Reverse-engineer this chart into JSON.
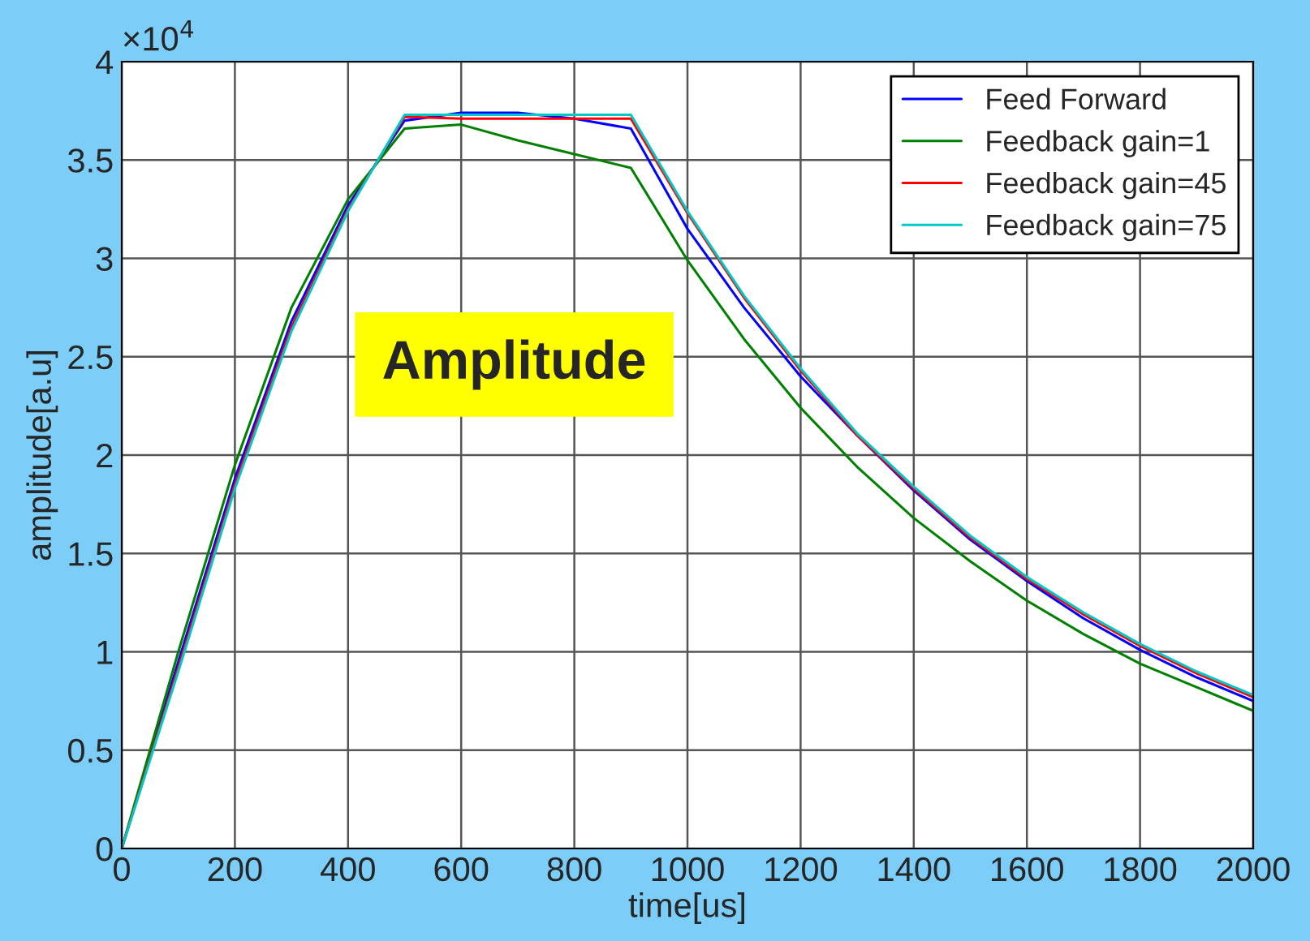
{
  "chart_data": {
    "type": "line",
    "xlabel": "time[us]",
    "ylabel": "amplitude[a.u]",
    "x": [
      0,
      100,
      200,
      300,
      400,
      500,
      600,
      700,
      800,
      900,
      1000,
      1100,
      1200,
      1300,
      1400,
      1500,
      1600,
      1700,
      1800,
      1900,
      2000
    ],
    "series": [
      {
        "name": "Feed Forward",
        "color": "#0000ff",
        "values": [
          0,
          0.95,
          1.88,
          2.68,
          3.27,
          3.7,
          3.74,
          3.74,
          3.71,
          3.66,
          3.15,
          2.75,
          2.4,
          2.1,
          1.82,
          1.57,
          1.36,
          1.17,
          1.01,
          0.87,
          0.75
        ]
      },
      {
        "name": "Feedback gain=1",
        "color": "#008000",
        "values": [
          0,
          1.0,
          1.95,
          2.75,
          3.3,
          3.66,
          3.68,
          3.6,
          3.53,
          3.46,
          2.99,
          2.59,
          2.24,
          1.94,
          1.68,
          1.46,
          1.26,
          1.09,
          0.94,
          0.82,
          0.7
        ]
      },
      {
        "name": "Feedback gain=45",
        "color": "#ff0000",
        "values": [
          0,
          0.92,
          1.85,
          2.65,
          3.25,
          3.72,
          3.71,
          3.71,
          3.71,
          3.71,
          3.23,
          2.8,
          2.43,
          2.1,
          1.83,
          1.58,
          1.37,
          1.19,
          1.03,
          0.89,
          0.77
        ]
      },
      {
        "name": "Feedback gain=75",
        "color": "#00c8c8",
        "values": [
          0,
          0.9,
          1.83,
          2.63,
          3.24,
          3.73,
          3.73,
          3.73,
          3.73,
          3.73,
          3.24,
          2.81,
          2.44,
          2.11,
          1.84,
          1.59,
          1.38,
          1.2,
          1.04,
          0.9,
          0.78
        ]
      }
    ],
    "xlim": [
      0,
      2000
    ],
    "xticks": [
      0,
      200,
      400,
      600,
      800,
      1000,
      1200,
      1400,
      1600,
      1800,
      2000
    ],
    "ylim": [
      0,
      4
    ],
    "yticks": [
      0,
      0.5,
      1,
      1.5,
      2,
      2.5,
      3,
      3.5,
      4
    ],
    "annotations": [
      "×10$^{4}$",
      "Amplitude"
    ],
    "grid": true,
    "legend": "top right",
    "marker": "none",
    "line_style": "solid"
  }
}
